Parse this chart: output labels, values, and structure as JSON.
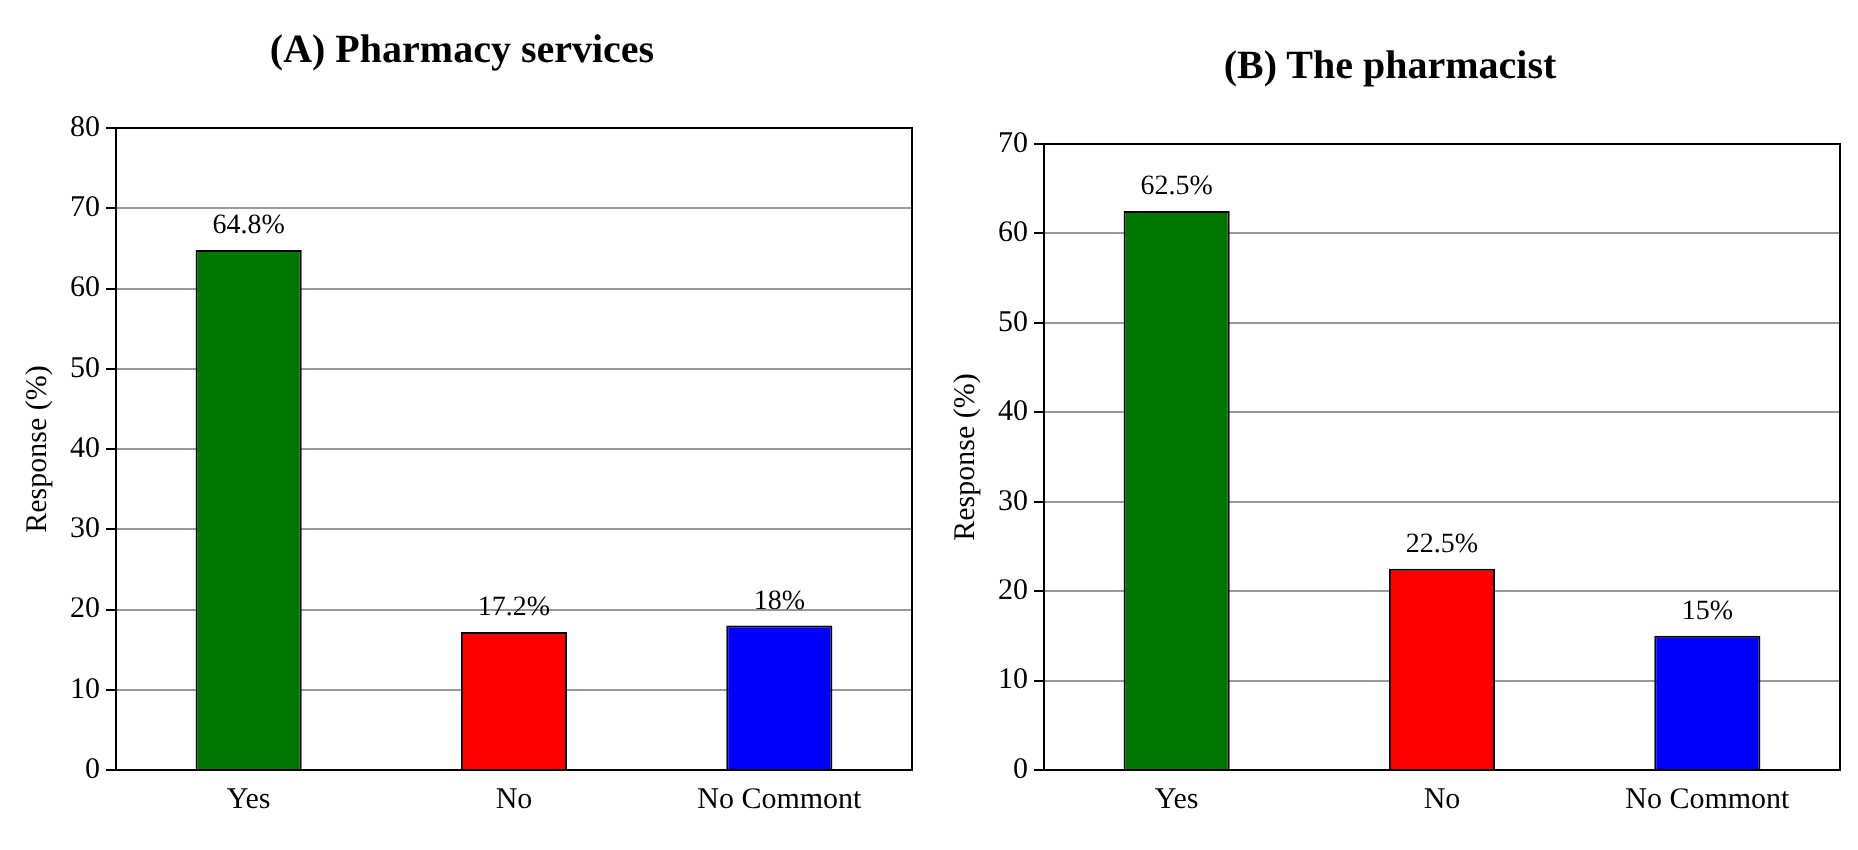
{
  "chart_data": [
    {
      "type": "bar",
      "title": "(A) Pharmacy services",
      "ylabel": "Response (%)",
      "categories": [
        "Yes",
        "No",
        "No Commont"
      ],
      "values": [
        64.8,
        17.2,
        18
      ],
      "colors": [
        "#007700",
        "#ff0000",
        "#0000ff"
      ],
      "value_labels": [
        "64.8%",
        "17.2%",
        "18%"
      ],
      "ylim": [
        0,
        80
      ],
      "yticks": [
        0,
        10,
        20,
        30,
        40,
        50,
        60,
        70,
        80
      ],
      "grid": "y"
    },
    {
      "type": "bar",
      "title": "(B) The pharmacist",
      "ylabel": "Response (%)",
      "categories": [
        "Yes",
        "No",
        "No Commont"
      ],
      "values": [
        62.5,
        22.5,
        15
      ],
      "colors": [
        "#007700",
        "#ff0000",
        "#0000ff"
      ],
      "value_labels": [
        "62.5%",
        "22.5%",
        "15%"
      ],
      "ylim": [
        0,
        70
      ],
      "yticks": [
        0,
        10,
        20,
        30,
        40,
        50,
        60,
        70
      ],
      "grid": "y"
    }
  ]
}
